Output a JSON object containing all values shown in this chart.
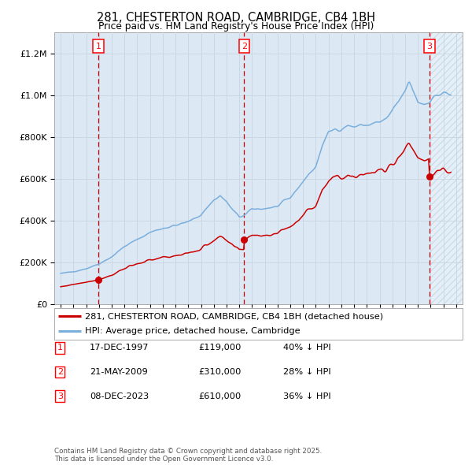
{
  "title": "281, CHESTERTON ROAD, CAMBRIDGE, CB4 1BH",
  "subtitle": "Price paid vs. HM Land Registry's House Price Index (HPI)",
  "legend_line1": "281, CHESTERTON ROAD, CAMBRIDGE, CB4 1BH (detached house)",
  "legend_line2": "HPI: Average price, detached house, Cambridge",
  "sale1_date": "17-DEC-1997",
  "sale1_price": 119000,
  "sale1_label": "40% ↓ HPI",
  "sale2_date": "21-MAY-2009",
  "sale2_price": 310000,
  "sale2_label": "28% ↓ HPI",
  "sale3_date": "08-DEC-2023",
  "sale3_price": 610000,
  "sale3_label": "36% ↓ HPI",
  "sale1_x": 1997.958,
  "sale2_x": 2009.375,
  "sale3_x": 2023.917,
  "hpi_color": "#7aaedc",
  "price_color": "#cc0000",
  "bg_color": "#dce9f5",
  "grid_color": "#c8d4e0",
  "footer": "Contains HM Land Registry data © Crown copyright and database right 2025.\nThis data is licensed under the Open Government Licence v3.0.",
  "ylim_max": 1300000,
  "xlim_start": 1994.5,
  "xlim_end": 2026.5
}
